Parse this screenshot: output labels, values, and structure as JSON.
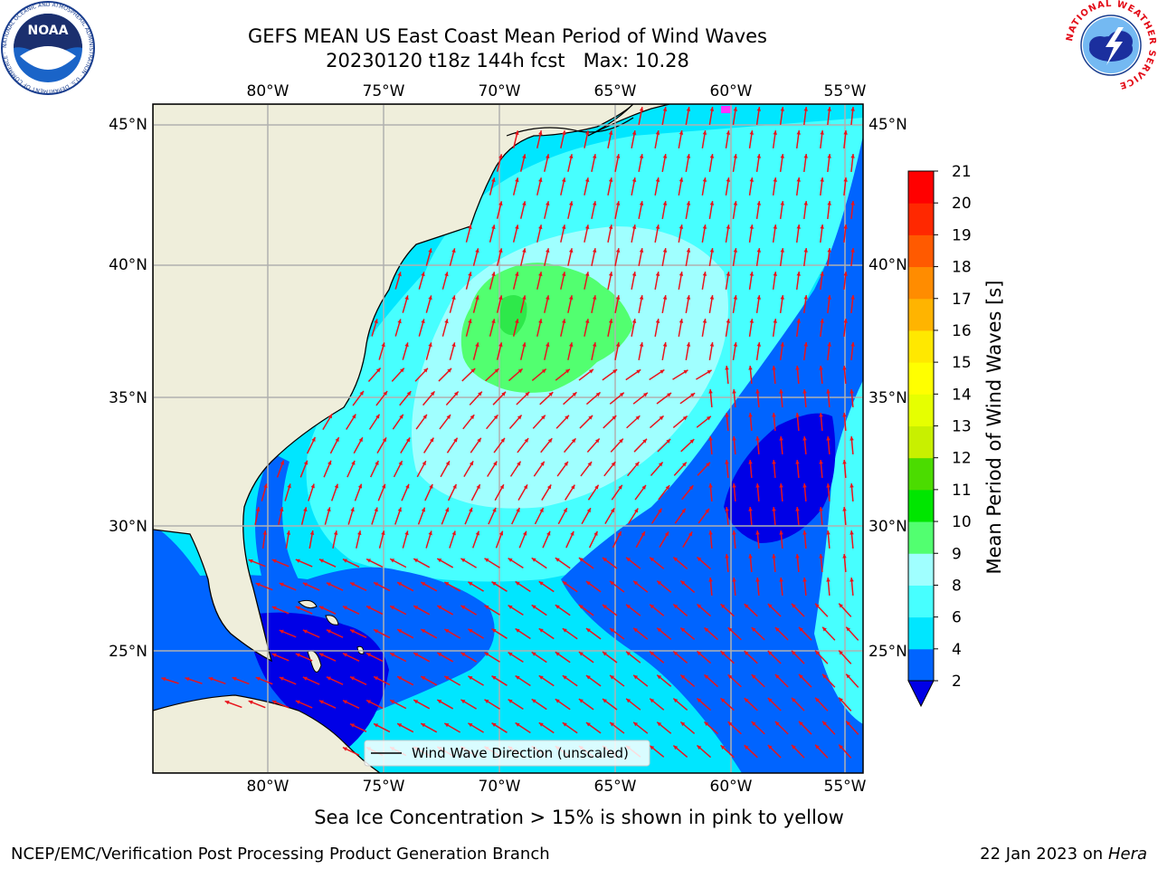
{
  "title": {
    "line1": "GEFS MEAN US East Coast Mean Period of Wind Waves",
    "line2": "20230120 t18z 144h fcst   Max: 10.28"
  },
  "map": {
    "lon_ticks": [
      "80°W",
      "75°W",
      "70°W",
      "65°W",
      "60°W",
      "55°W"
    ],
    "lat_ticks": [
      "45°N",
      "40°N",
      "35°N",
      "30°N",
      "25°N"
    ],
    "legend_label": "Wind Wave Direction (unscaled)",
    "arrow_color": "#e8141c",
    "land_color": "#efeedb"
  },
  "colorbar": {
    "label": "Mean Period of Wind Waves [s]",
    "ticks": [
      "2",
      "4",
      "6",
      "8",
      "9",
      "10",
      "11",
      "12",
      "13",
      "14",
      "15",
      "16",
      "17",
      "18",
      "19",
      "20",
      "21"
    ],
    "colors": [
      "#0064ff",
      "#00e6ff",
      "#47ffff",
      "#a0ffff",
      "#52ff70",
      "#00e600",
      "#4bdc00",
      "#c8f000",
      "#e6ff00",
      "#ffff00",
      "#ffe800",
      "#ffb400",
      "#ff8c00",
      "#ff5a00",
      "#ff2800",
      "#ff0000"
    ],
    "under_color": "#0000e6"
  },
  "caption": "Sea Ice Concentration > 15% is shown in pink to yellow",
  "footer": {
    "left": "NCEP/EMC/Verification Post Processing Product Generation Branch",
    "right_date": "22 Jan 2023 on ",
    "right_host": "Hera"
  },
  "logos": {
    "noaa_text": "NOAA",
    "noaa_ring": "NATIONAL OCEANIC AND ATMOSPHERIC ADMINISTRATION · U.S. DEPARTMENT OF COMMERCE ·",
    "nws_ring": "NATIONAL WEATHER SERVICE"
  }
}
